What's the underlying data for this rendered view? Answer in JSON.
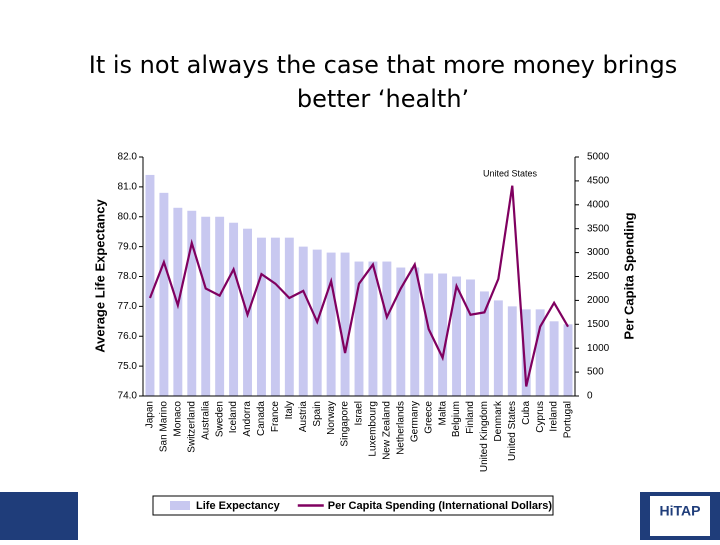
{
  "header": {
    "title_lines": [
      "It is not always the case that more money brings",
      "better ‘health’"
    ]
  },
  "logo": "HiTAP",
  "chart_data": {
    "type": "bar_line",
    "ylabel": "Average Life Expectancy",
    "y2label": "Per Capita Spending",
    "annotations": [
      "United States"
    ],
    "categories": [
      "Japan",
      "San Marino",
      "Monaco",
      "Switzerland",
      "Australia",
      "Sweden",
      "Iceland",
      "Andorra",
      "Canada",
      "France",
      "Italy",
      "Austria",
      "Spain",
      "Norway",
      "Singapore",
      "Israel",
      "Luxembourg",
      "New Zealand",
      "Netherlands",
      "Germany",
      "Greece",
      "Malta",
      "Belgium",
      "Finland",
      "United Kingdom",
      "Denmark",
      "United States",
      "Cuba",
      "Cyprus",
      "Ireland",
      "Portugal"
    ],
    "series": [
      {
        "name": "Life Expectancy",
        "type": "bar",
        "axis": "y",
        "color": "#c8c8f0",
        "values": [
          81.4,
          80.8,
          80.3,
          80.2,
          80.0,
          80.0,
          79.8,
          79.6,
          79.3,
          79.3,
          79.3,
          79.0,
          78.9,
          78.8,
          78.8,
          78.5,
          78.5,
          78.5,
          78.3,
          78.3,
          78.1,
          78.1,
          78.0,
          77.9,
          77.5,
          77.2,
          77.0,
          76.9,
          76.9,
          76.5,
          76.4
        ]
      },
      {
        "name": "Per Capita Spending (International Dollars)",
        "type": "line",
        "axis": "y2",
        "color": "#800060",
        "values": [
          2050,
          2800,
          1900,
          3200,
          2250,
          2100,
          2650,
          1700,
          2550,
          2350,
          2050,
          2200,
          1550,
          2400,
          900,
          2350,
          2750,
          1650,
          2250,
          2750,
          1400,
          800,
          2300,
          1700,
          1750,
          2450,
          4400,
          200,
          1450,
          1950,
          1450
        ]
      }
    ],
    "ylim": [
      74,
      82
    ],
    "yticks": [
      {
        "value": 74,
        "label": "74.0"
      },
      {
        "value": 75,
        "label": "75.0"
      },
      {
        "value": 76,
        "label": "76.0"
      },
      {
        "value": 77,
        "label": "77.0"
      },
      {
        "value": 78,
        "label": "78.0"
      },
      {
        "value": 79,
        "label": "79.0"
      },
      {
        "value": 80,
        "label": "80.0"
      },
      {
        "value": 81,
        "label": "81.0"
      },
      {
        "value": 82,
        "label": "82.0"
      }
    ],
    "y2lim": [
      0,
      5000
    ],
    "y2ticks": [
      0,
      500,
      1000,
      1500,
      2000,
      2500,
      3000,
      3500,
      4000,
      4500,
      5000
    ],
    "legend": "bottom"
  }
}
